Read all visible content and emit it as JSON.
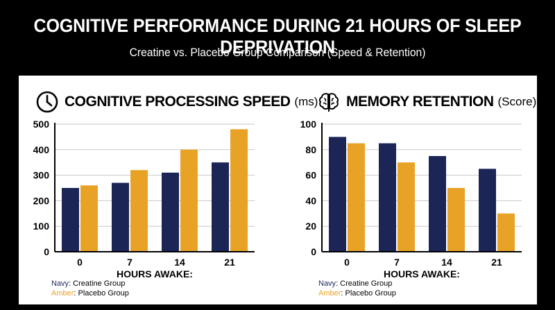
{
  "title": "COGNITIVE PERFORMANCE DURING 21 HOURS OF SLEEP DEPRIVATION",
  "subtitle": "Creatine vs. Placebo Group Comparison (Speed & Retention)",
  "colors": {
    "creatine": "#1b2657",
    "placebo": "#e8a326",
    "grid": "#c8c8c8",
    "axis": "#000000"
  },
  "legend": {
    "navy_word": "Navy",
    "navy_text": ": Creatine Group",
    "amber_word": "Amber",
    "amber_text": ": Placebo Group"
  },
  "chart_data": [
    {
      "type": "bar",
      "title": "COGNITIVE PROCESSING SPEED",
      "unit": "(ms)",
      "icon": "clock-icon",
      "xlabel": "HOURS AWAKE:",
      "ylabel": "",
      "categories": [
        "0",
        "7",
        "14",
        "21"
      ],
      "ylim": [
        0,
        500
      ],
      "yticks": [
        0,
        100,
        200,
        300,
        400,
        500
      ],
      "grid": true,
      "series": [
        {
          "name": "Creatine Group",
          "color": "#1b2657",
          "values": [
            250,
            270,
            310,
            350
          ]
        },
        {
          "name": "Placebo Group",
          "color": "#e8a326",
          "values": [
            260,
            320,
            400,
            480
          ]
        }
      ]
    },
    {
      "type": "bar",
      "title": "MEMORY RETENTION",
      "unit": "(Score)",
      "icon": "brain-icon",
      "xlabel": "HOURS AWAKE:",
      "ylabel": "",
      "categories": [
        "0",
        "7",
        "14",
        "21"
      ],
      "ylim": [
        0,
        100
      ],
      "yticks": [
        0,
        20,
        40,
        60,
        80,
        100
      ],
      "grid": true,
      "series": [
        {
          "name": "Creatine Group",
          "color": "#1b2657",
          "values": [
            90,
            85,
            75,
            65
          ]
        },
        {
          "name": "Placebo Group",
          "color": "#e8a326",
          "values": [
            85,
            70,
            50,
            30
          ]
        }
      ]
    }
  ]
}
